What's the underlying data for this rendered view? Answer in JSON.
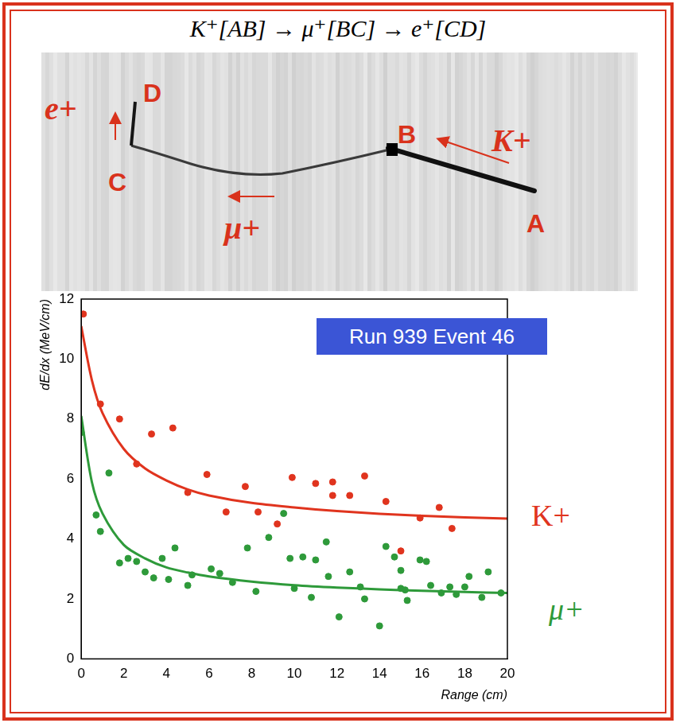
{
  "title": "K⁺[AB] → μ⁺[BC] → e⁺[CD]",
  "track_image": {
    "points": [
      "A",
      "B",
      "C",
      "D"
    ],
    "particles": [
      "K+",
      "μ+",
      "e+"
    ]
  },
  "chart_data": {
    "type": "scatter",
    "annotation": "Run 939 Event 46",
    "x_label": "Range (cm)",
    "y_label": "dE/dx (MeV/cm)",
    "xlim": [
      0,
      20
    ],
    "xticks": [
      0,
      2,
      4,
      6,
      8,
      10,
      12,
      14,
      16,
      18,
      20
    ],
    "ylim": [
      0,
      12
    ],
    "yticks": [
      0,
      2,
      4,
      6,
      8,
      10,
      12
    ],
    "grid": false,
    "legend": "right",
    "series": [
      {
        "name": "K+",
        "color": "#e0341e",
        "x": [
          0.1,
          0.9,
          1.8,
          2.6,
          3.3,
          4.3,
          5.0,
          5.9,
          6.8,
          7.7,
          8.3,
          9.2,
          9.9,
          11.0,
          11.8,
          11.8,
          12.6,
          13.3,
          14.3,
          15.0,
          15.9,
          16.8,
          17.4
        ],
        "values": [
          11.5,
          8.5,
          8.0,
          6.5,
          7.5,
          7.7,
          5.55,
          6.15,
          4.9,
          5.75,
          4.9,
          4.5,
          6.05,
          5.85,
          5.9,
          5.45,
          5.45,
          6.1,
          5.25,
          3.6,
          4.7,
          5.05,
          4.35
        ],
        "fit_x": [
          0,
          0.5,
          1,
          2,
          3,
          4,
          5,
          6,
          8,
          10,
          12,
          14,
          16,
          18,
          20
        ],
        "fit_values": [
          11.1,
          9.3,
          8.2,
          7.0,
          6.35,
          5.95,
          5.65,
          5.45,
          5.2,
          5.05,
          4.93,
          4.84,
          4.77,
          4.72,
          4.68
        ]
      },
      {
        "name": "μ+",
        "color": "#2e9a3a",
        "x": [
          0.0,
          0.7,
          0.9,
          1.3,
          1.8,
          2.2,
          2.6,
          3.0,
          3.4,
          3.8,
          4.1,
          4.4,
          5.0,
          5.2,
          6.1,
          6.5,
          7.1,
          7.8,
          8.2,
          8.8,
          9.5,
          9.8,
          10.0,
          10.4,
          10.8,
          11.0,
          11.5,
          11.6,
          12.1,
          12.6,
          13.1,
          13.3,
          14.0,
          14.3,
          14.7,
          15.0,
          15.0,
          15.2,
          15.3,
          15.9,
          16.2,
          16.4,
          16.9,
          17.3,
          17.6,
          18.0,
          18.2,
          18.8,
          19.1,
          19.7
        ],
        "values": [
          7.55,
          4.8,
          4.25,
          6.2,
          3.2,
          3.35,
          3.25,
          2.9,
          2.7,
          3.35,
          2.65,
          3.7,
          2.45,
          2.8,
          3.0,
          2.85,
          2.55,
          3.7,
          2.25,
          4.05,
          4.85,
          3.35,
          2.35,
          3.4,
          2.05,
          3.3,
          3.9,
          2.75,
          1.4,
          2.9,
          2.4,
          2.0,
          1.1,
          3.75,
          3.4,
          2.35,
          2.95,
          2.3,
          1.95,
          3.3,
          3.25,
          2.45,
          2.2,
          2.4,
          2.15,
          2.4,
          2.75,
          2.05,
          2.9,
          2.2
        ],
        "fit_x": [
          0,
          0.5,
          1,
          2,
          3,
          4,
          5,
          6,
          8,
          10,
          12,
          14,
          16,
          18,
          20
        ],
        "fit_values": [
          8.1,
          5.9,
          4.85,
          3.8,
          3.35,
          3.05,
          2.88,
          2.75,
          2.58,
          2.46,
          2.38,
          2.32,
          2.27,
          2.23,
          2.2
        ]
      }
    ]
  }
}
